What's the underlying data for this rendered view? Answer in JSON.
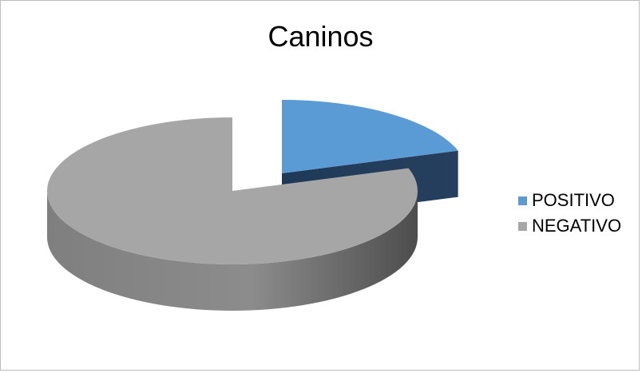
{
  "chart_data": {
    "type": "pie",
    "title": "Caninos",
    "categories": [
      "POSITIVO",
      "NEGATIVO"
    ],
    "values": [
      20,
      80
    ],
    "colors": [
      "#5b9bd5",
      "#a6a6a6"
    ],
    "legend_position": "right",
    "style": "3d-exploded"
  }
}
